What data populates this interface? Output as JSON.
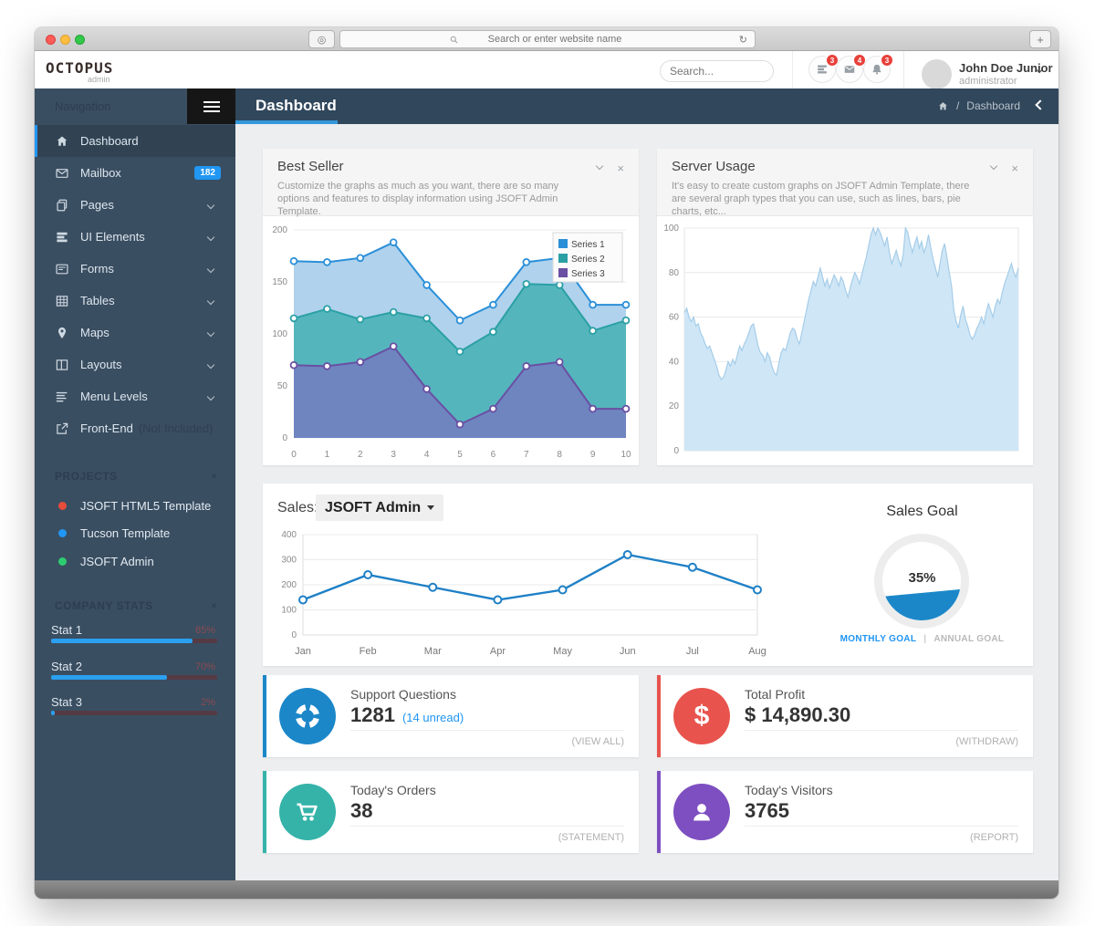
{
  "browser": {
    "address_placeholder": "Search or enter website name",
    "refresh_glyph": "↻",
    "shield_glyph": "◎",
    "new_tab_glyph": "+"
  },
  "header": {
    "logo": "OCTOPUS",
    "logo_sub": "admin",
    "search_placeholder": "Search...",
    "notifications": [
      {
        "name": "tasks",
        "badge": "3"
      },
      {
        "name": "messages",
        "badge": "4"
      },
      {
        "name": "alerts",
        "badge": "3"
      }
    ],
    "user_name": "John Doe Junior",
    "user_role": "administrator"
  },
  "titlebar": {
    "title": "Dashboard",
    "breadcrumb_sep": "/",
    "breadcrumb": "Dashboard"
  },
  "sidebar": {
    "section_label": "Navigation",
    "items": [
      {
        "label": "Dashboard"
      },
      {
        "label": "Mailbox",
        "badge": "182"
      },
      {
        "label": "Pages"
      },
      {
        "label": "UI Elements"
      },
      {
        "label": "Forms"
      },
      {
        "label": "Tables"
      },
      {
        "label": "Maps"
      },
      {
        "label": "Layouts"
      },
      {
        "label": "Menu Levels"
      },
      {
        "label": "Front-End",
        "note": "(Not Included)"
      }
    ],
    "projects": {
      "title": "PROJECTS",
      "close": "×",
      "items": [
        {
          "label": "JSOFT HTML5 Template",
          "color": "#e74c3c"
        },
        {
          "label": "Tucson Template",
          "color": "#2196f3"
        },
        {
          "label": "JSOFT Admin",
          "color": "#2ecc71"
        }
      ]
    },
    "stats": {
      "title": "COMPANY STATS",
      "close": "×",
      "items": [
        {
          "label": "Stat 1",
          "pct": "85%",
          "value": 85
        },
        {
          "label": "Stat 2",
          "pct": "70%",
          "value": 70
        },
        {
          "label": "Stat 3",
          "pct": "2%",
          "value": 2
        }
      ]
    }
  },
  "panels": {
    "best_seller": {
      "title": "Best Seller",
      "description": "Customize the graphs as much as you want, there are so many options and features to display information using JSOFT Admin Template.",
      "collapse": "⌄",
      "close": "×"
    },
    "server_usage": {
      "title": "Server Usage",
      "description": "It's easy to create custom graphs on JSOFT Admin Template, there are several graph types that you can use, such as lines, bars, pie charts, etc...",
      "collapse": "⌄",
      "close": "×"
    },
    "sales": {
      "label": "Sales:",
      "dropdown": "JSOFT Admin",
      "goal_title": "Sales Goal",
      "goal_value": "35%",
      "monthly": "MONTHLY GOAL",
      "annual": "ANNUAL GOAL",
      "monthly_color": "#2196f3",
      "annual_color": "#b9b9b9"
    }
  },
  "cards": [
    {
      "title": "Support Questions",
      "value": "1281",
      "extra": "(14 unread)",
      "action": "(VIEW ALL)",
      "color": "#1b87c9"
    },
    {
      "title": "Total Profit",
      "value": "$ 14,890.30",
      "extra": "",
      "action": "(WITHDRAW)",
      "color": "#e8544d",
      "dollar": "$"
    },
    {
      "title": "Today's Orders",
      "value": "38",
      "extra": "",
      "action": "(STATEMENT)",
      "color": "#35b3a9"
    },
    {
      "title": "Today's Visitors",
      "value": "3765",
      "extra": "",
      "action": "(REPORT)",
      "color": "#7e4fc0"
    }
  ],
  "chart_data": [
    {
      "id": "best-seller",
      "type": "area",
      "title": "Best Seller",
      "x": [
        0,
        1,
        2,
        3,
        4,
        5,
        6,
        7,
        8,
        9,
        10
      ],
      "series": [
        {
          "name": "Series 1",
          "line": "#2b8fd8",
          "fill": "#aacfec",
          "values": [
            170,
            169,
            173,
            188,
            147,
            113,
            128,
            169,
            173,
            128,
            128
          ]
        },
        {
          "name": "Series 2",
          "line": "#2aa0a5",
          "fill": "#4db3b9",
          "values": [
            115,
            124,
            114,
            121,
            115,
            83,
            102,
            148,
            147,
            103,
            113
          ]
        },
        {
          "name": "Series 3",
          "line": "#6a4fa3",
          "fill": "#7181bf",
          "values": [
            70,
            69,
            73,
            88,
            47,
            13,
            28,
            69,
            73,
            28,
            28
          ]
        }
      ],
      "ylim": [
        0,
        200
      ],
      "yticks": [
        0,
        50,
        100,
        150,
        200
      ],
      "grid": true,
      "legend_position": "top-right"
    },
    {
      "id": "server-usage",
      "type": "area",
      "title": "Server Usage",
      "fill": "#cfe6f6",
      "line": "#a5cde9",
      "ylim": [
        0,
        100
      ],
      "yticks": [
        0,
        20,
        40,
        60,
        80,
        100
      ],
      "grid": true,
      "values": [
        62,
        64,
        60,
        58,
        60,
        56,
        57,
        53,
        51,
        48,
        46,
        47,
        44,
        41,
        38,
        34,
        32,
        33,
        36,
        40,
        38,
        41,
        39,
        43,
        47,
        45,
        48,
        50,
        53,
        56,
        57,
        52,
        47,
        44,
        43,
        40,
        44,
        42,
        38,
        35,
        34,
        39,
        44,
        46,
        45,
        49,
        53,
        55,
        54,
        50,
        48,
        53,
        58,
        63,
        68,
        72,
        76,
        74,
        78,
        82,
        78,
        74,
        77,
        73,
        76,
        79,
        77,
        74,
        78,
        76,
        72,
        69,
        73,
        77,
        80,
        78,
        75,
        79,
        83,
        87,
        92,
        97,
        100,
        97,
        100,
        98,
        95,
        92,
        96,
        89,
        84,
        87,
        90,
        86,
        83,
        88,
        100,
        98,
        93,
        89,
        93,
        96,
        91,
        94,
        89,
        92,
        97,
        91,
        86,
        82,
        78,
        84,
        90,
        93,
        87,
        80,
        74,
        63,
        58,
        55,
        61,
        65,
        59,
        56,
        52,
        50,
        52,
        55,
        57,
        60,
        57,
        62,
        66,
        63,
        60,
        65,
        68,
        66,
        71,
        75,
        78,
        81,
        84,
        80,
        78,
        82
      ]
    },
    {
      "id": "sales",
      "type": "line",
      "categories": [
        "Jan",
        "Feb",
        "Mar",
        "Apr",
        "May",
        "Jun",
        "Jul",
        "Aug"
      ],
      "values": [
        140,
        240,
        190,
        140,
        180,
        320,
        270,
        180
      ],
      "line": "#1f80c6",
      "ylim": [
        0,
        400
      ],
      "yticks": [
        0,
        100,
        200,
        300,
        400
      ],
      "grid": true
    },
    {
      "id": "sales-goal",
      "type": "gauge",
      "value": 35,
      "label": "35%",
      "fill": "#1b87c9",
      "ring": "#ededed"
    }
  ]
}
